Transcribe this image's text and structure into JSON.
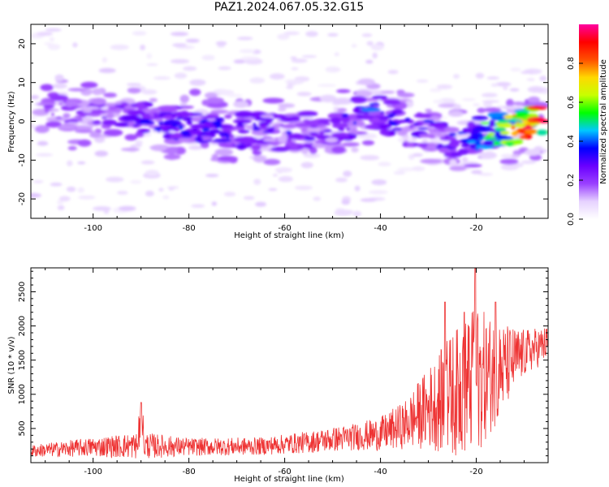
{
  "title": "PAZ1.2024.067.05.32.G15",
  "chart_data": [
    {
      "type": "heatmap",
      "xlabel": "Height of straight line (km)",
      "ylabel": "Frequency (Hz)",
      "xlim": [
        -113,
        -5
      ],
      "ylim": [
        -25,
        25
      ],
      "xticks": [
        -100,
        -80,
        -60,
        -40,
        -20
      ],
      "yticks": [
        -20,
        -10,
        0,
        10,
        20
      ],
      "colorbar": {
        "label": "Normalized spectral amplitude",
        "range": [
          0,
          1
        ],
        "ticks": [
          0.0,
          0.2,
          0.4,
          0.6,
          0.8
        ],
        "colormap": [
          "#ffffff",
          "#e6d2ff",
          "#9a40ff",
          "#6a00ff",
          "#0000ff",
          "#00c8ff",
          "#00ff00",
          "#c8ff00",
          "#ffd800",
          "#ff5000",
          "#ff0000",
          "#ff00a0"
        ]
      },
      "ridge": [
        {
          "x": -110,
          "y": 3,
          "v": 0.15
        },
        {
          "x": -100,
          "y": 1,
          "v": 0.2
        },
        {
          "x": -90,
          "y": 0,
          "v": 0.25
        },
        {
          "x": -80,
          "y": -1,
          "v": 0.28
        },
        {
          "x": -70,
          "y": -2,
          "v": 0.26
        },
        {
          "x": -60,
          "y": -3,
          "v": 0.22
        },
        {
          "x": -50,
          "y": -2,
          "v": 0.2
        },
        {
          "x": -42,
          "y": 3,
          "v": 0.3
        },
        {
          "x": -35,
          "y": -1,
          "v": 0.24
        },
        {
          "x": -30,
          "y": -3,
          "v": 0.26
        },
        {
          "x": -25,
          "y": -5,
          "v": 0.24
        },
        {
          "x": -20,
          "y": -3,
          "v": 0.35
        },
        {
          "x": -15,
          "y": -2,
          "v": 0.5
        },
        {
          "x": -10,
          "y": -1,
          "v": 0.75
        },
        {
          "x": -6,
          "y": 0,
          "v": 0.9
        }
      ]
    },
    {
      "type": "line",
      "xlabel": "Height of straight line (km)",
      "ylabel": "SNR (10 * v/v)",
      "xlim": [
        -113,
        -5
      ],
      "ylim": [
        0,
        2850
      ],
      "xticks": [
        -100,
        -80,
        -60,
        -40,
        -20
      ],
      "yticks": [
        500,
        1000,
        1500,
        2000,
        2500
      ],
      "series_color": "#ee3333",
      "envelope": [
        {
          "x": -113,
          "base": 170,
          "amp": 90
        },
        {
          "x": -100,
          "base": 230,
          "amp": 140
        },
        {
          "x": -90,
          "base": 250,
          "amp": 200
        },
        {
          "x": -80,
          "base": 230,
          "amp": 130
        },
        {
          "x": -65,
          "base": 240,
          "amp": 130
        },
        {
          "x": -55,
          "base": 300,
          "amp": 160
        },
        {
          "x": -45,
          "base": 380,
          "amp": 200
        },
        {
          "x": -40,
          "base": 420,
          "amp": 250
        },
        {
          "x": -35,
          "base": 550,
          "amp": 350
        },
        {
          "x": -30,
          "base": 800,
          "amp": 600
        },
        {
          "x": -25,
          "base": 1000,
          "amp": 900
        },
        {
          "x": -20,
          "base": 1200,
          "amp": 1100
        },
        {
          "x": -15,
          "base": 1350,
          "amp": 700
        },
        {
          "x": -10,
          "base": 1600,
          "amp": 350
        },
        {
          "x": -5,
          "base": 1750,
          "amp": 250
        }
      ],
      "peaks": [
        {
          "x": -90,
          "y": 880
        },
        {
          "x": -26.5,
          "y": 2350
        },
        {
          "x": -22.5,
          "y": 2200
        },
        {
          "x": -20.2,
          "y": 2850
        },
        {
          "x": -16,
          "y": 2350
        }
      ]
    }
  ]
}
